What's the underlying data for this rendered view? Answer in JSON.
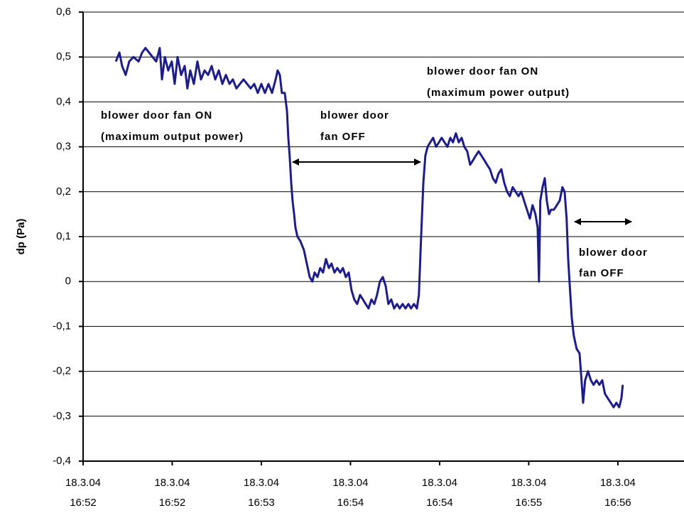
{
  "chart_data": {
    "type": "line",
    "y_label": "dp (Pa)",
    "annotations": [
      [
        "blower door fan ON",
        "(maximum output power)"
      ],
      [
        "blower door",
        "fan OFF"
      ],
      [
        "blower door fan ON",
        "(maximum power output)"
      ],
      [
        "blower door",
        "fan OFF"
      ]
    ],
    "x": [
      14.7,
      16.3,
      17.5,
      19.1,
      20.7,
      22.6,
      24.9,
      26.5,
      28.0,
      29.6,
      31.2,
      32.8,
      34.4,
      35.4,
      36.7,
      38.2,
      39.8,
      41.1,
      42.4,
      44.0,
      45.6,
      46.8,
      48.1,
      49.7,
      51.3,
      52.9,
      54.5,
      56.1,
      57.7,
      59.3,
      60.9,
      62.5,
      64.1,
      65.7,
      67.2,
      68.8,
      70.4,
      72.0,
      73.6,
      75.2,
      76.8,
      78.4,
      80.0,
      81.6,
      83.2,
      84.8,
      86.4,
      87.3,
      88.3,
      89.2,
      90.5,
      91.5,
      92.1,
      92.7,
      93.4,
      94.0,
      94.7,
      95.3,
      96.2,
      97.5,
      99.1,
      100.4,
      101.7,
      102.9,
      103.9,
      105.2,
      106.4,
      107.7,
      109.0,
      110.3,
      111.5,
      112.8,
      114.1,
      115.4,
      116.6,
      117.9,
      119.2,
      120.5,
      121.7,
      123.0,
      124.3,
      125.6,
      126.8,
      128.1,
      129.4,
      130.7,
      131.9,
      133.2,
      134.5,
      135.8,
      137.0,
      138.3,
      139.6,
      140.9,
      142.1,
      143.4,
      144.7,
      146.0,
      147.2,
      148.5,
      149.8,
      150.7,
      151.7,
      152.7,
      153.6,
      154.6,
      155.8,
      157.1,
      158.4,
      159.7,
      160.9,
      162.2,
      163.5,
      164.8,
      166.0,
      167.3,
      168.6,
      169.9,
      171.1,
      172.4,
      173.7,
      175.0,
      176.2,
      177.5,
      178.8,
      180.1,
      181.3,
      182.6,
      183.9,
      185.2,
      186.4,
      187.7,
      189.0,
      190.3,
      191.5,
      192.8,
      194.1,
      195.4,
      196.6,
      197.9,
      199.2,
      200.5,
      201.7,
      203.0,
      204.0,
      204.6,
      205.2,
      206.2,
      207.2,
      208.1,
      209.1,
      210.0,
      211.3,
      212.6,
      213.9,
      215.1,
      216.1,
      217.0,
      217.7,
      218.3,
      219.3,
      220.2,
      221.5,
      222.8,
      223.4,
      224.4,
      225.3,
      226.6,
      227.9,
      229.1,
      230.4,
      231.7,
      233.0,
      234.2,
      235.5,
      236.8,
      238.1,
      239.3,
      240.6,
      241.6,
      242.2
    ],
    "series": [
      {
        "color": "#1c1c8a",
        "values": [
          0.49,
          0.51,
          0.48,
          0.46,
          0.49,
          0.5,
          0.49,
          0.51,
          0.52,
          0.51,
          0.5,
          0.49,
          0.52,
          0.45,
          0.5,
          0.47,
          0.49,
          0.44,
          0.5,
          0.46,
          0.48,
          0.43,
          0.47,
          0.44,
          0.49,
          0.45,
          0.47,
          0.46,
          0.48,
          0.45,
          0.47,
          0.44,
          0.46,
          0.44,
          0.45,
          0.43,
          0.44,
          0.45,
          0.44,
          0.43,
          0.44,
          0.42,
          0.44,
          0.42,
          0.44,
          0.42,
          0.45,
          0.47,
          0.46,
          0.42,
          0.42,
          0.38,
          0.32,
          0.28,
          0.22,
          0.18,
          0.15,
          0.12,
          0.1,
          0.09,
          0.07,
          0.04,
          0.01,
          0.0,
          0.02,
          0.01,
          0.03,
          0.02,
          0.05,
          0.03,
          0.04,
          0.02,
          0.03,
          0.02,
          0.03,
          0.01,
          0.02,
          -0.02,
          -0.04,
          -0.05,
          -0.03,
          -0.04,
          -0.05,
          -0.06,
          -0.04,
          -0.05,
          -0.03,
          0.0,
          0.01,
          -0.01,
          -0.05,
          -0.04,
          -0.06,
          -0.05,
          -0.06,
          -0.05,
          -0.06,
          -0.05,
          -0.06,
          -0.05,
          -0.06,
          -0.03,
          0.1,
          0.22,
          0.28,
          0.3,
          0.31,
          0.32,
          0.3,
          0.31,
          0.32,
          0.31,
          0.3,
          0.32,
          0.31,
          0.33,
          0.31,
          0.32,
          0.3,
          0.29,
          0.26,
          0.27,
          0.28,
          0.29,
          0.28,
          0.27,
          0.26,
          0.25,
          0.23,
          0.22,
          0.24,
          0.25,
          0.22,
          0.2,
          0.19,
          0.21,
          0.2,
          0.19,
          0.2,
          0.18,
          0.16,
          0.14,
          0.17,
          0.15,
          0.12,
          0.0,
          0.18,
          0.21,
          0.23,
          0.18,
          0.15,
          0.16,
          0.16,
          0.17,
          0.18,
          0.21,
          0.2,
          0.14,
          0.05,
          0.0,
          -0.08,
          -0.12,
          -0.15,
          -0.16,
          -0.2,
          -0.27,
          -0.22,
          -0.2,
          -0.22,
          -0.23,
          -0.22,
          -0.23,
          -0.22,
          -0.25,
          -0.26,
          -0.27,
          -0.28,
          -0.27,
          -0.28,
          -0.26,
          -0.23
        ]
      }
    ],
    "xlim": [
      0,
      270
    ],
    "xticks": [
      {
        "value": 0,
        "label": "18.3.04 16:52"
      },
      {
        "value": 40,
        "label": "18.3.04 16:52"
      },
      {
        "value": 80,
        "label": "18.3.04 16:53"
      },
      {
        "value": 120,
        "label": "18.3.04 16:54"
      },
      {
        "value": 160,
        "label": "18.3.04 16:54"
      },
      {
        "value": 200,
        "label": "18.3.04 16:55"
      },
      {
        "value": 240,
        "label": "18.3.04 16:56"
      }
    ],
    "ylim": [
      -0.4,
      0.6
    ],
    "yticks": [
      {
        "value": 0.6,
        "label": "0,6"
      },
      {
        "value": 0.5,
        "label": "0,5"
      },
      {
        "value": 0.4,
        "label": "0,4"
      },
      {
        "value": 0.3,
        "label": "0,3"
      },
      {
        "value": 0.2,
        "label": "0,2"
      },
      {
        "value": 0.1,
        "label": "0,1"
      },
      0,
      {
        "value": -0.1,
        "label": "-0,1"
      },
      {
        "value": -0.2,
        "label": "-0,2"
      },
      {
        "value": -0.3,
        "label": "-0,3"
      },
      {
        "value": -0.4,
        "label": "-0,4"
      }
    ],
    "grid": true
  }
}
